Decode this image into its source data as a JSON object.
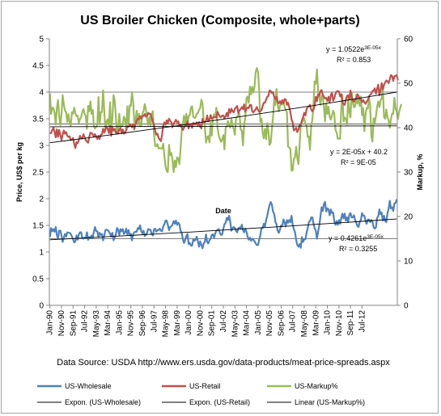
{
  "chart_data": {
    "type": "line",
    "title": "US Broiler Chicken (Composite, whole+parts)",
    "xlabel": "Date",
    "ylabel_left": "Price, US$ per kg",
    "ylabel_right": "Markup, %",
    "ylim_left": [
      0,
      5
    ],
    "ylim_right": [
      0,
      60
    ],
    "left_ticks": [
      "0",
      "0.5",
      "1",
      "1.5",
      "2",
      "2.5",
      "3",
      "3.5",
      "4",
      "4.5",
      "5"
    ],
    "right_ticks": [
      "0",
      "10",
      "20",
      "30",
      "40",
      "50",
      "60"
    ],
    "x_ticks": [
      "Jan-90",
      "Nov-90",
      "Sep-91",
      "Jul-92",
      "May-93",
      "Mar-94",
      "Jan-95",
      "Nov-95",
      "Sep-96",
      "Jul-97",
      "May-98",
      "Mar-99",
      "Jan-00",
      "Nov-00",
      "Sep-01",
      "Jul-02",
      "May-03",
      "Mar-04",
      "Jan-05",
      "Nov-05",
      "Sep-06",
      "Jul-07",
      "May-08",
      "Mar-09",
      "Jan-10",
      "Nov-10",
      "Sep-11",
      "Jul-12"
    ],
    "gridlines": "left axis at 1.25, 3.4 and 4.0 US$/kg",
    "source": "Data Source: USDA http://www.ers.usda.gov/data-products/meat-price-spreads.aspx",
    "x_start": "Jan-90",
    "x_step": "1 month",
    "series": [
      {
        "name": "US-Wholesale",
        "axis": "left",
        "color": "#4f81bd",
        "values": [
          1.28,
          1.45,
          1.39,
          1.43,
          1.38,
          1.47,
          1.32,
          1.25,
          1.4,
          1.4,
          1.31,
          1.19,
          1.27,
          1.34,
          1.29,
          1.37,
          1.36,
          1.36,
          1.34,
          1.29,
          1.24,
          1.18,
          1.2,
          1.31,
          1.23,
          1.33,
          1.37,
          1.37,
          1.26,
          1.25,
          1.27,
          1.26,
          1.37,
          1.23,
          1.28,
          1.26,
          1.31,
          1.27,
          1.38,
          1.47,
          1.39,
          1.39,
          1.28,
          1.36,
          1.32,
          1.34,
          1.22,
          1.31,
          1.41,
          1.42,
          1.41,
          1.38,
          1.35,
          1.29,
          1.36,
          1.22,
          1.27,
          1.33,
          1.45,
          1.42,
          1.32,
          1.43,
          1.39,
          1.43,
          1.34,
          1.37,
          1.44,
          1.33,
          1.41,
          1.32,
          1.34,
          1.22,
          1.34,
          1.37,
          1.38,
          1.38,
          1.45,
          1.43,
          1.5,
          1.39,
          1.35,
          1.4,
          1.3,
          1.32,
          1.36,
          1.43,
          1.42,
          1.42,
          1.34,
          1.31,
          1.42,
          1.44,
          1.38,
          1.41,
          1.41,
          1.44,
          1.4,
          1.39,
          1.48,
          1.52,
          1.59,
          1.59,
          1.51,
          1.41,
          1.47,
          1.48,
          1.51,
          1.58,
          1.53,
          1.59,
          1.51,
          1.55,
          1.52,
          1.4,
          1.36,
          1.24,
          1.17,
          1.23,
          1.3,
          1.34,
          1.15,
          1.17,
          1.12,
          1.12,
          1.24,
          1.21,
          1.23,
          1.29,
          1.2,
          1.1,
          1.2,
          1.13,
          1.07,
          1.16,
          1.19,
          1.33,
          1.19,
          1.16,
          1.22,
          1.25,
          1.32,
          1.33,
          1.27,
          1.35,
          1.4,
          1.41,
          1.43,
          1.36,
          1.32,
          1.33,
          1.44,
          1.52,
          1.55,
          1.64,
          1.6,
          1.68,
          1.56,
          1.4,
          1.45,
          1.47,
          1.45,
          1.4,
          1.37,
          1.45,
          1.46,
          1.45,
          1.51,
          1.41,
          1.37,
          1.44,
          1.38,
          1.29,
          1.23,
          1.27,
          1.21,
          1.25,
          1.23,
          1.2,
          1.16,
          1.13,
          1.13,
          1.23,
          1.31,
          1.45,
          1.45,
          1.53,
          1.48,
          1.6,
          1.68,
          1.79,
          1.88,
          1.94,
          1.89,
          1.76,
          1.71,
          1.57,
          1.52,
          1.4,
          1.36,
          1.42,
          1.5,
          1.49,
          1.61,
          1.56,
          1.48,
          1.6,
          1.55,
          1.6,
          1.56,
          1.68,
          1.51,
          1.43,
          1.37,
          1.23,
          1.13,
          1.1,
          1.15,
          1.08,
          1.28,
          1.19,
          1.24,
          1.24,
          1.36,
          1.45,
          1.56,
          1.58,
          1.65,
          1.65,
          1.54,
          1.44,
          1.4,
          1.25,
          1.38,
          1.5,
          1.66,
          1.84,
          1.77,
          1.9,
          1.94,
          1.76,
          1.82,
          1.8,
          1.69,
          1.8,
          1.73,
          1.74,
          1.58,
          1.51,
          1.58,
          1.51,
          1.6,
          1.53,
          1.63,
          1.72,
          1.63,
          1.72,
          1.59,
          1.65,
          1.56,
          1.7,
          1.73,
          1.65,
          1.65,
          1.69,
          1.6,
          1.55,
          1.49,
          1.47,
          1.57,
          1.6,
          1.73,
          1.68,
          1.68,
          1.59,
          1.53,
          1.61,
          1.61,
          1.56,
          1.6,
          1.57,
          1.47,
          1.44,
          1.46,
          1.64,
          1.67,
          1.8,
          1.71,
          1.74,
          1.59,
          1.68,
          1.58,
          1.56,
          1.73,
          1.81,
          1.96,
          1.82,
          1.84,
          1.77,
          1.91,
          1.92,
          1.99
        ]
      },
      {
        "name": "US-Retail",
        "axis": "left",
        "color": "#c0504d",
        "values": [
          3.23,
          3.23,
          3.29,
          3.33,
          3.26,
          3.15,
          3.3,
          3.16,
          3.29,
          3.19,
          3.1,
          3.2,
          3.28,
          3.22,
          3.25,
          3.18,
          3.16,
          3.17,
          3.1,
          3.11,
          3.14,
          3.03,
          2.95,
          3.06,
          3.04,
          3.1,
          3.18,
          3.13,
          3.13,
          3.21,
          3.15,
          3.1,
          3.07,
          3.05,
          3.16,
          3.24,
          3.23,
          3.21,
          3.16,
          3.21,
          3.17,
          3.12,
          3.18,
          3.12,
          3.2,
          3.21,
          3.31,
          3.24,
          3.3,
          3.35,
          3.31,
          3.23,
          3.36,
          3.18,
          3.34,
          3.28,
          3.31,
          3.24,
          3.25,
          3.23,
          3.3,
          3.32,
          3.23,
          3.3,
          3.22,
          3.24,
          3.29,
          3.36,
          3.35,
          3.4,
          3.37,
          3.34,
          3.4,
          3.3,
          3.4,
          3.47,
          3.5,
          3.49,
          3.55,
          3.5,
          3.55,
          3.55,
          3.59,
          3.54,
          3.55,
          3.61,
          3.59,
          3.59,
          3.52,
          3.45,
          3.38,
          3.28,
          3.2,
          3.22,
          3.14,
          3.11,
          3.08,
          3.2,
          3.37,
          3.43,
          3.39,
          3.47,
          3.42,
          3.5,
          3.46,
          3.44,
          3.34,
          3.41,
          3.44,
          3.48,
          3.43,
          3.45,
          3.37,
          3.39,
          3.33,
          3.29,
          3.33,
          3.38,
          3.37,
          3.45,
          3.32,
          3.39,
          3.39,
          3.33,
          3.42,
          3.39,
          3.39,
          3.43,
          3.37,
          3.44,
          3.35,
          3.32,
          3.5,
          3.44,
          3.43,
          3.46,
          3.56,
          3.45,
          3.48,
          3.57,
          3.5,
          3.51,
          3.53,
          3.53,
          3.52,
          3.63,
          3.58,
          3.54,
          3.53,
          3.56,
          3.56,
          3.51,
          3.55,
          3.61,
          3.54,
          3.68,
          3.61,
          3.69,
          3.64,
          3.62,
          3.69,
          3.71,
          3.74,
          3.6,
          3.66,
          3.68,
          3.72,
          3.68,
          3.77,
          3.63,
          3.69,
          3.71,
          3.7,
          3.76,
          3.76,
          3.64,
          3.62,
          3.65,
          3.68,
          3.72,
          3.66,
          3.63,
          3.64,
          3.66,
          3.74,
          3.8,
          3.8,
          3.86,
          3.91,
          3.93,
          4.03,
          4.02,
          3.98,
          4.0,
          3.91,
          3.87,
          3.91,
          3.81,
          3.79,
          3.83,
          3.78,
          3.85,
          3.79,
          3.87,
          3.86,
          3.76,
          3.8,
          3.72,
          3.62,
          3.49,
          3.43,
          3.28,
          3.3,
          3.33,
          3.25,
          3.3,
          3.38,
          3.38,
          3.47,
          3.53,
          3.61,
          3.56,
          3.68,
          3.72,
          3.73,
          3.76,
          3.67,
          3.64,
          3.67,
          3.75,
          3.91,
          3.83,
          3.96,
          3.93,
          4.02,
          4.04,
          3.95,
          3.91,
          3.88,
          3.89,
          3.83,
          3.91,
          3.81,
          3.95,
          3.98,
          3.84,
          3.88,
          3.97,
          4.01,
          4.02,
          4.01,
          3.92,
          3.96,
          3.82,
          3.77,
          3.76,
          3.86,
          3.93,
          3.94,
          3.87,
          4.03,
          3.9,
          3.84,
          3.82,
          3.87,
          3.87,
          3.96,
          3.93,
          3.87,
          3.87,
          3.81,
          3.85,
          3.81,
          3.78,
          3.82,
          3.85,
          3.92,
          3.95,
          3.97,
          4.02,
          4.03,
          4.07,
          3.97,
          4.06,
          4.14,
          3.94,
          4.03,
          4.17,
          4.05,
          4.14,
          4.18,
          4.22,
          4.2,
          4.17,
          4.24,
          4.32,
          4.3,
          4.21,
          4.3,
          4.3,
          4.32,
          4.22
        ]
      },
      {
        "name": "US-Markup%",
        "axis": "right",
        "color": "#9bbb59",
        "values": [
          47.7,
          43.1,
          44.5,
          44.4,
          43.4,
          40.7,
          44.5,
          46.2,
          42.7,
          40.6,
          43.0,
          47.3,
          45.2,
          43.8,
          43.5,
          41.3,
          43.0,
          41.0,
          40.4,
          43.5,
          43.1,
          44.5,
          43.3,
          42.6,
          42.7,
          41.1,
          41.9,
          42.4,
          43.5,
          44.2,
          43.1,
          42.6,
          39.7,
          44.9,
          43.7,
          45.9,
          43.1,
          44.0,
          40.4,
          39.8,
          40.2,
          40.7,
          46.9,
          40.7,
          43.5,
          43.5,
          48.4,
          43.7,
          39.4,
          41.3,
          41.9,
          40.5,
          45.7,
          39.4,
          42.0,
          47.3,
          46.1,
          42.8,
          38.6,
          39.7,
          43.1,
          39.9,
          40.4,
          40.5,
          42.5,
          41.9,
          39.4,
          44.8,
          40.9,
          45.0,
          44.9,
          48.0,
          45.7,
          41.3,
          41.2,
          43.8,
          40.6,
          43.1,
          40.4,
          40.4,
          43.2,
          43.7,
          45.3,
          44.1,
          42.1,
          40.6,
          42.4,
          40.5,
          42.8,
          43.7,
          38.6,
          35.9,
          35.8,
          36.3,
          35.3,
          35.4,
          35.3,
          35.3,
          36.4,
          33.7,
          31.3,
          30.2,
          30.0,
          36.1,
          33.8,
          34.3,
          32.8,
          30.0,
          32.6,
          31.1,
          33.3,
          33.1,
          31.8,
          35.1,
          39.3,
          40.8,
          42.7,
          40.7,
          43.1,
          40.6,
          42.6,
          42.9,
          44.5,
          44.8,
          42.4,
          42.2,
          42.3,
          43.1,
          43.3,
          44.0,
          44.4,
          46.3,
          45.4,
          41.4,
          40.4,
          36.6,
          37.8,
          38.1,
          36.7,
          41.1,
          38.2,
          42.2,
          43.0,
          42.7,
          44.5,
          39.9,
          38.3,
          37.5,
          36.8,
          37.4,
          38.3,
          35.1,
          40.1,
          40.2,
          41.5,
          40.5,
          40.0,
          42.0,
          40.4,
          39.6,
          38.4,
          42.2,
          42.4,
          42.9,
          43.0,
          39.6,
          39.2,
          36.0,
          40.7,
          42.1,
          46.6,
          47.0,
          45.6,
          49.2,
          47.5,
          49.2,
          47.9,
          49.3,
          52.5,
          53.4,
          52.5,
          48.4,
          41.3,
          42.0,
          38.9,
          37.6,
          39.7,
          37.4,
          41.0,
          39.2,
          36.1,
          36.6,
          39.8,
          42.2,
          46.6,
          45.1,
          48.7,
          45.3,
          43.7,
          44.9,
          45.5,
          45.2,
          46.0,
          44.7,
          44.0,
          43.5,
          35.8,
          35.5,
          35.2,
          30.3,
          30.4,
          33.0,
          33.4,
          35.7,
          33.1,
          31.8,
          36.2,
          40.6,
          41.2,
          41.6,
          42.1,
          40.9,
          40.4,
          37.9,
          38.0,
          35.0,
          40.6,
          41.7,
          45.2,
          50.4,
          49.9,
          53.1,
          48.4,
          47.0,
          45.1,
          47.2,
          47.0,
          44.6,
          41.4,
          45.5,
          43.1,
          44.7,
          42.5,
          41.8,
          42.8,
          43.8,
          43.1,
          39.5,
          38.9,
          37.5,
          37.6,
          37.5,
          44.1,
          47.4,
          41.4,
          42.3,
          42.0,
          40.7,
          46.9,
          43.6,
          42.3,
          48.0,
          45.6,
          44.6,
          44.8,
          47.4,
          45.4,
          46.6,
          44.9,
          47.0,
          42.8,
          44.4,
          39.2,
          43.0,
          44.4,
          44.3,
          46.7,
          45.1,
          38.1,
          36.9,
          42.1,
          41.0,
          42.6,
          44.6,
          45.9,
          44.6,
          46.1,
          46.6,
          48.8,
          42.4,
          42.0,
          44.1,
          42.3,
          41.6,
          40.0,
          41.9,
          43.2,
          43.1,
          46.7,
          44.3,
          43.6,
          41.9,
          43.4,
          44.4,
          45.3
        ]
      },
      {
        "name": "Expon. (US-Wholesale)",
        "axis": "left",
        "color": "#000000",
        "trendline": "y = 0.4261e^(3E-05x)"
      },
      {
        "name": "Expon. (US-Retail)",
        "axis": "left",
        "color": "#000000",
        "trendline": "y = 1.0522e^(3E-05x)"
      },
      {
        "name": "Linear (US-Markup%)",
        "axis": "right",
        "color": "#000000",
        "trendline": "y = 2E-05x + 40.2"
      }
    ],
    "trendlines": [
      {
        "series": "Expon. (US-Retail)",
        "from": 3.05,
        "to": 4.0,
        "axis": "left"
      },
      {
        "series": "Linear (US-Markup%)",
        "from": 40.2,
        "to": 40.4,
        "axis": "right"
      },
      {
        "series": "Expon. (US-Wholesale)",
        "from": 1.23,
        "to": 1.62,
        "axis": "left"
      }
    ],
    "annotations": [
      {
        "line1_base": "y = 1.0522e",
        "line1_exp": "3E-05x",
        "line2": "R² = 0.853"
      },
      {
        "line1_base": "y = 2E-05x + 40.2",
        "line1_exp": "",
        "line2": "R² = 9E-05"
      },
      {
        "line1_base": "y = 0.4261e",
        "line1_exp": "3E-05x",
        "line2": "R² = 0.3255"
      }
    ],
    "legend_position": "bottom",
    "legend": [
      {
        "label": "US-Wholesale",
        "color": "#4f81bd",
        "style": "thick"
      },
      {
        "label": "US-Retail",
        "color": "#c0504d",
        "style": "thick"
      },
      {
        "label": "US-Markup%",
        "color": "#9bbb59",
        "style": "thick"
      },
      {
        "label": "Expon. (US-Wholesale)",
        "color": "#000000",
        "style": "thin"
      },
      {
        "label": "Expon. (US-Retail)",
        "color": "#000000",
        "style": "thin"
      },
      {
        "label": "Linear (US-Markup%)",
        "color": "#000000",
        "style": "thin"
      }
    ]
  }
}
